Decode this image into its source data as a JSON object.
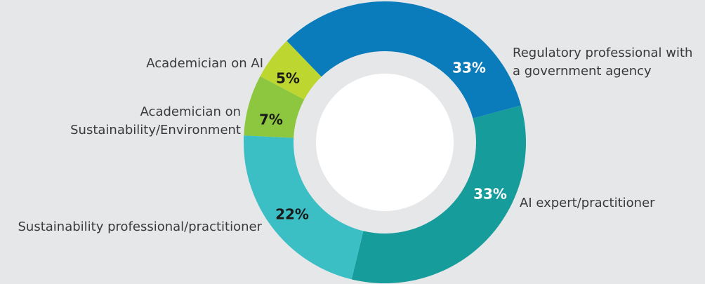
{
  "chart_data": {
    "type": "donut",
    "categories": [
      "Regulatory professional with\na government agency",
      "AI expert/practitioner",
      "Sustainability professional/practitioner",
      "Academician on\nSustainability/Environment",
      "Academician on AI"
    ],
    "values": [
      33,
      33,
      22,
      7,
      5
    ],
    "value_labels": [
      "33%",
      "33%",
      "22%",
      "7%",
      "5%"
    ],
    "colors": [
      "#0a7bbb",
      "#179c9c",
      "#3bbfc4",
      "#8dc63f",
      "#bdd630"
    ]
  }
}
